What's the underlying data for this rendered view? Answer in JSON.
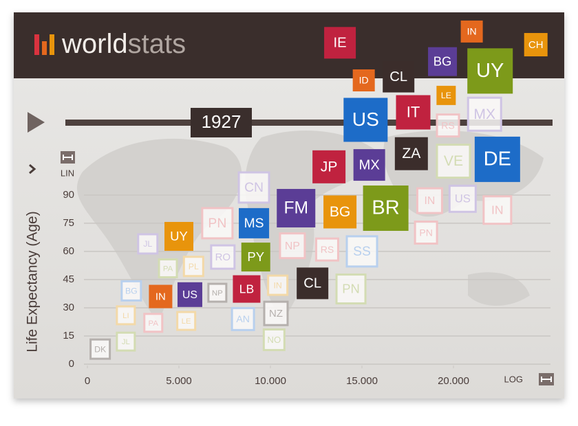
{
  "header": {
    "brand_a": "world",
    "brand_b": "stats"
  },
  "timeline": {
    "year": "1927"
  },
  "chart_data": {
    "type": "scatter",
    "y_label": "Life Expectancy (Age)",
    "y_scale_label": "LIN",
    "x_scale_label": "LOG",
    "xlim": [
      0,
      25300
    ],
    "ylim": [
      0,
      185
    ],
    "xticks": [
      0,
      {
        "value": 5000,
        "label": "5.000"
      },
      {
        "value": 10000,
        "label": "10.000"
      },
      {
        "value": 15000,
        "label": "15.000"
      },
      {
        "value": 20000,
        "label": "20.000"
      }
    ],
    "yticks": [
      0,
      15,
      30,
      45,
      60,
      75,
      90
    ],
    "grid": true,
    "points": [
      {
        "label": "DK",
        "x": 700,
        "y": 8,
        "size": 28,
        "color": "#b5b0ad",
        "filled": false
      },
      {
        "label": "JL",
        "x": 2100,
        "y": 12,
        "size": 26,
        "color": "#d3dcb3",
        "filled": false
      },
      {
        "label": "NO",
        "x": 10200,
        "y": 13,
        "size": 30,
        "color": "#d3dcb3",
        "filled": false
      },
      {
        "label": "LI",
        "x": 2100,
        "y": 26,
        "size": 26,
        "color": "#f3d9a8",
        "filled": false
      },
      {
        "label": "PA",
        "x": 3600,
        "y": 22,
        "size": 26,
        "color": "#f1c3c5",
        "filled": false
      },
      {
        "label": "LE",
        "x": 5400,
        "y": 23,
        "size": 26,
        "color": "#f3d9a8",
        "filled": false
      },
      {
        "label": "AN",
        "x": 8500,
        "y": 24,
        "size": 32,
        "color": "#b8d0ee",
        "filled": false
      },
      {
        "label": "NZ",
        "x": 10300,
        "y": 27,
        "size": 34,
        "color": "#b5b0ad",
        "filled": false
      },
      {
        "label": "BG",
        "x": 2400,
        "y": 39,
        "size": 28,
        "color": "#b8d0ee",
        "filled": false
      },
      {
        "label": "IN",
        "x": 4000,
        "y": 36,
        "size": 34,
        "color": "#e4681e",
        "filled": true
      },
      {
        "label": "US",
        "x": 5600,
        "y": 37,
        "size": 36,
        "color": "#5b3d96",
        "filled": true
      },
      {
        "label": "NP",
        "x": 7100,
        "y": 38,
        "size": 26,
        "color": "#b5b0ad",
        "filled": false
      },
      {
        "label": "LB",
        "x": 8700,
        "y": 40,
        "size": 40,
        "color": "#c0223f",
        "filled": true
      },
      {
        "label": "IN",
        "x": 10400,
        "y": 42,
        "size": 28,
        "color": "#f3d9a8",
        "filled": false
      },
      {
        "label": "CL",
        "x": 12300,
        "y": 43,
        "size": 46,
        "color": "#3b2d2b",
        "filled": true
      },
      {
        "label": "PN",
        "x": 14400,
        "y": 40,
        "size": 42,
        "color": "#d3dcb3",
        "filled": false
      },
      {
        "label": "PA",
        "x": 4400,
        "y": 51,
        "size": 26,
        "color": "#d3dcb3",
        "filled": false
      },
      {
        "label": "PL",
        "x": 5800,
        "y": 52,
        "size": 28,
        "color": "#f3d9a8",
        "filled": false
      },
      {
        "label": "RO",
        "x": 7400,
        "y": 57,
        "size": 34,
        "color": "#cfc4e4",
        "filled": false
      },
      {
        "label": "PY",
        "x": 9200,
        "y": 57,
        "size": 42,
        "color": "#7d9a1a",
        "filled": true
      },
      {
        "label": "NP",
        "x": 11200,
        "y": 63,
        "size": 36,
        "color": "#f1c3c5",
        "filled": false
      },
      {
        "label": "RS",
        "x": 13100,
        "y": 61,
        "size": 32,
        "color": "#f1c3c5",
        "filled": false
      },
      {
        "label": "SS",
        "x": 15000,
        "y": 60,
        "size": 44,
        "color": "#b8d0ee",
        "filled": false
      },
      {
        "label": "JL",
        "x": 3300,
        "y": 64,
        "size": 28,
        "color": "#cfc4e4",
        "filled": false
      },
      {
        "label": "UY",
        "x": 5000,
        "y": 68,
        "size": 42,
        "color": "#e8940c",
        "filled": true
      },
      {
        "label": "PN",
        "x": 7100,
        "y": 75,
        "size": 44,
        "color": "#f1c3c5",
        "filled": false
      },
      {
        "label": "MS",
        "x": 9100,
        "y": 75,
        "size": 44,
        "color": "#1d6cc8",
        "filled": true
      },
      {
        "label": "PN",
        "x": 18500,
        "y": 70,
        "size": 32,
        "color": "#f1c3c5",
        "filled": false
      },
      {
        "label": "CN",
        "x": 9100,
        "y": 94,
        "size": 44,
        "color": "#cfc4e4",
        "filled": false
      },
      {
        "label": "FM",
        "x": 11400,
        "y": 83,
        "size": 56,
        "color": "#5b3d96",
        "filled": true
      },
      {
        "label": "BG",
        "x": 13800,
        "y": 81,
        "size": 48,
        "color": "#e8940c",
        "filled": true
      },
      {
        "label": "BR",
        "x": 16300,
        "y": 83,
        "size": 66,
        "color": "#7d9a1a",
        "filled": true
      },
      {
        "label": "IN",
        "x": 18700,
        "y": 87,
        "size": 36,
        "color": "#f1c3c5",
        "filled": false
      },
      {
        "label": "US",
        "x": 20500,
        "y": 88,
        "size": 38,
        "color": "#cfc4e4",
        "filled": false
      },
      {
        "label": "IN",
        "x": 22400,
        "y": 82,
        "size": 40,
        "color": "#f1c3c5",
        "filled": false
      },
      {
        "label": "JP",
        "x": 13200,
        "y": 105,
        "size": 48,
        "color": "#c0223f",
        "filled": true
      },
      {
        "label": "MX",
        "x": 15400,
        "y": 106,
        "size": 46,
        "color": "#5b3d96",
        "filled": true
      },
      {
        "label": "ZA",
        "x": 17700,
        "y": 112,
        "size": 48,
        "color": "#3b2d2b",
        "filled": true
      },
      {
        "label": "VE",
        "x": 20000,
        "y": 108,
        "size": 48,
        "color": "#d3dcb3",
        "filled": false
      },
      {
        "label": "DE",
        "x": 22400,
        "y": 109,
        "size": 66,
        "color": "#1d6cc8",
        "filled": true
      },
      {
        "label": "US",
        "x": 15200,
        "y": 130,
        "size": 64,
        "color": "#1d6cc8",
        "filled": true
      },
      {
        "label": "IT",
        "x": 17800,
        "y": 134,
        "size": 50,
        "color": "#c0223f",
        "filled": true
      },
      {
        "label": "RS",
        "x": 19700,
        "y": 127,
        "size": 32,
        "color": "#f1c3c5",
        "filled": false
      },
      {
        "label": "MX",
        "x": 21700,
        "y": 133,
        "size": 48,
        "color": "#cfc4e4",
        "filled": false
      },
      {
        "label": "LE",
        "x": 19600,
        "y": 143,
        "size": 28,
        "color": "#e8940c",
        "filled": true
      },
      {
        "label": "ID",
        "x": 15100,
        "y": 151,
        "size": 32,
        "color": "#e4681e",
        "filled": true
      },
      {
        "label": "CL",
        "x": 17000,
        "y": 153,
        "size": 46,
        "color": "#3b2d2b",
        "filled": true
      },
      {
        "label": "BG",
        "x": 19400,
        "y": 161,
        "size": 42,
        "color": "#5b3d96",
        "filled": true
      },
      {
        "label": "UY",
        "x": 22000,
        "y": 156,
        "size": 66,
        "color": "#7d9a1a",
        "filled": true
      },
      {
        "label": "IE",
        "x": 13800,
        "y": 171,
        "size": 46,
        "color": "#c0223f",
        "filled": true
      },
      {
        "label": "IN",
        "x": 21000,
        "y": 177,
        "size": 32,
        "color": "#e4681e",
        "filled": true
      },
      {
        "label": "CH",
        "x": 24500,
        "y": 170,
        "size": 34,
        "color": "#e8940c",
        "filled": true
      }
    ]
  }
}
